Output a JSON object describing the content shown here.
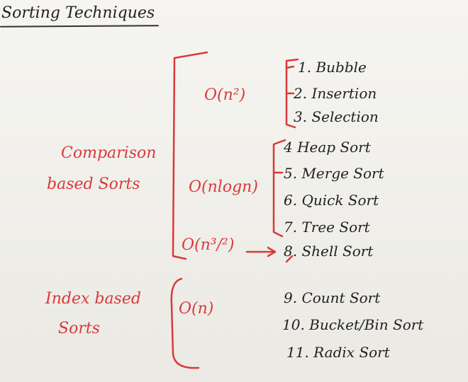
{
  "title": "Sorting Techniques",
  "categories": [
    {
      "label_lines": [
        "Comparison",
        "based Sorts"
      ]
    },
    {
      "label_lines": [
        "Index based",
        "Sorts"
      ]
    }
  ],
  "complexities": [
    "O(n²)",
    "O(nlogn)",
    "O(n³/²)",
    "O(n)"
  ],
  "sorts": [
    "1. Bubble",
    "2. Insertion",
    "3. Selection",
    "4 Heap Sort",
    "5. Merge Sort",
    "6. Quick Sort",
    "7. Tree Sort",
    "8. Shell Sort",
    "9. Count Sort",
    "10. Bucket/Bin Sort",
    "11. Radix Sort"
  ],
  "colors": {
    "ink_black": "#222222",
    "ink_red": "#d9393b"
  }
}
